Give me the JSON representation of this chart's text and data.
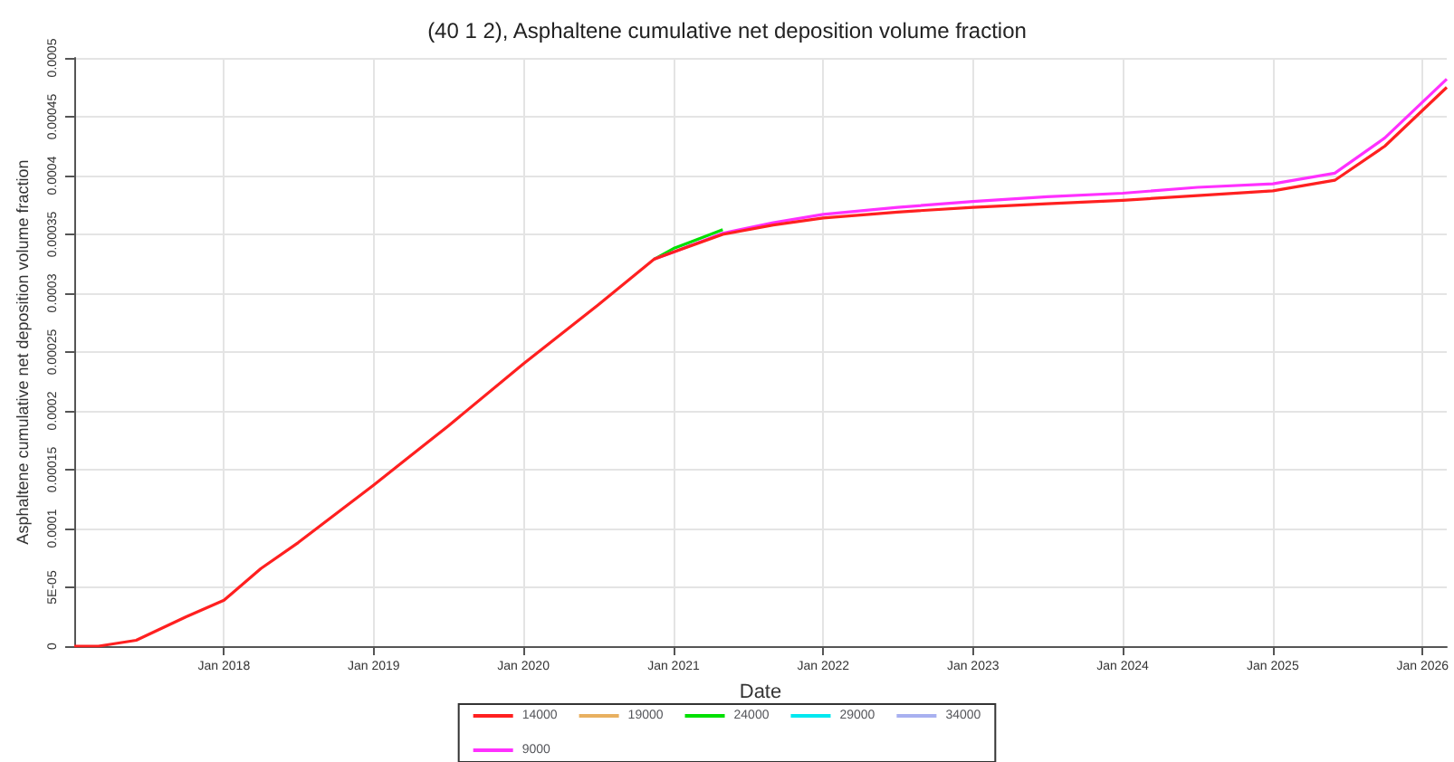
{
  "chart_data": {
    "type": "line",
    "title": "(40 1 2), Asphaltene cumulative net deposition volume fraction",
    "xlabel": "Date",
    "ylabel": "Asphaltene cumulative net deposition volume fraction",
    "x": [
      "2017-01",
      "2017-03",
      "2017-06",
      "2017-08",
      "2017-10",
      "2018-01",
      "2018-04",
      "2018-07",
      "2019-01",
      "2019-07",
      "2020-01",
      "2020-07",
      "2020-11-15",
      "2021-01",
      "2021-05",
      "2021-09",
      "2022-01",
      "2022-07",
      "2023-01",
      "2023-07",
      "2024-01",
      "2024-07",
      "2025-01",
      "2025-06",
      "2025-10",
      "2026-03"
    ],
    "series": [
      {
        "name": "14000",
        "color": "#ff2020",
        "values": [
          0,
          0,
          5e-06,
          1.5e-05,
          2.5e-05,
          3.9e-05,
          6.6e-05,
          8.8e-05,
          0.000137,
          0.000187,
          0.00024,
          0.00029,
          0.000329,
          0.000335,
          0.00035,
          0.000358,
          0.000364,
          0.000369,
          0.000373,
          0.000376,
          0.000379,
          0.000383,
          0.000387,
          0.000396,
          0.000425,
          0.000475
        ]
      },
      {
        "name": "19000",
        "color": "#e8b060",
        "values": [
          null,
          null,
          null,
          null,
          null,
          null,
          null,
          null,
          null,
          null,
          null,
          null,
          null,
          null,
          null,
          null,
          null,
          null,
          null,
          null,
          null,
          null,
          null,
          null,
          null,
          null
        ]
      },
      {
        "name": "24000",
        "color": "#00e000",
        "values": [
          null,
          null,
          null,
          null,
          null,
          null,
          null,
          null,
          null,
          null,
          null,
          null,
          0.000329,
          0.000338,
          0.000354,
          null,
          null,
          null,
          null,
          null,
          null,
          null,
          null,
          null,
          null,
          null
        ]
      },
      {
        "name": "29000",
        "color": "#00e8f0",
        "values": [
          null,
          null,
          null,
          null,
          null,
          null,
          null,
          null,
          null,
          null,
          null,
          null,
          null,
          null,
          null,
          null,
          null,
          null,
          null,
          null,
          null,
          null,
          null,
          null,
          null,
          null
        ]
      },
      {
        "name": "34000",
        "color": "#a8b0f0",
        "values": [
          null,
          null,
          null,
          null,
          null,
          null,
          null,
          null,
          null,
          null,
          null,
          null,
          null,
          null,
          null,
          null,
          null,
          null,
          null,
          null,
          null,
          null,
          null,
          null,
          null,
          null
        ]
      },
      {
        "name": "9000",
        "color": "#ff30ff",
        "values": [
          null,
          null,
          null,
          null,
          null,
          null,
          null,
          null,
          null,
          null,
          null,
          null,
          0.000329,
          0.000335,
          0.000351,
          0.00036,
          0.000367,
          0.000373,
          0.000378,
          0.000382,
          0.000385,
          0.00039,
          0.000393,
          0.000402,
          0.000432,
          0.000482
        ]
      }
    ],
    "xlim": [
      "2017-01-01",
      "2026-03-01"
    ],
    "xticks": [
      {
        "value": "2018-01-01",
        "label": "Jan 2018"
      },
      {
        "value": "2019-01-01",
        "label": "Jan 2019"
      },
      {
        "value": "2020-01-01",
        "label": "Jan 2020"
      },
      {
        "value": "2021-01-01",
        "label": "Jan 2021"
      },
      {
        "value": "2022-01-01",
        "label": "Jan 2022"
      },
      {
        "value": "2023-01-01",
        "label": "Jan 2023"
      },
      {
        "value": "2024-01-01",
        "label": "Jan 2024"
      },
      {
        "value": "2025-01-01",
        "label": "Jan 2025"
      },
      {
        "value": "2026-01-01",
        "label": "Jan 2026"
      }
    ],
    "ylim": [
      0,
      0.0005
    ],
    "yticks": [
      0,
      {
        "value": 5e-05,
        "label": "5E-05"
      },
      0.0001,
      0.00015,
      0.0002,
      0.00025,
      0.0003,
      0.00035,
      0.0004,
      0.00045,
      0.0005
    ],
    "grid": true,
    "legend": "bottom",
    "marker": "none",
    "line_style": "solid"
  }
}
